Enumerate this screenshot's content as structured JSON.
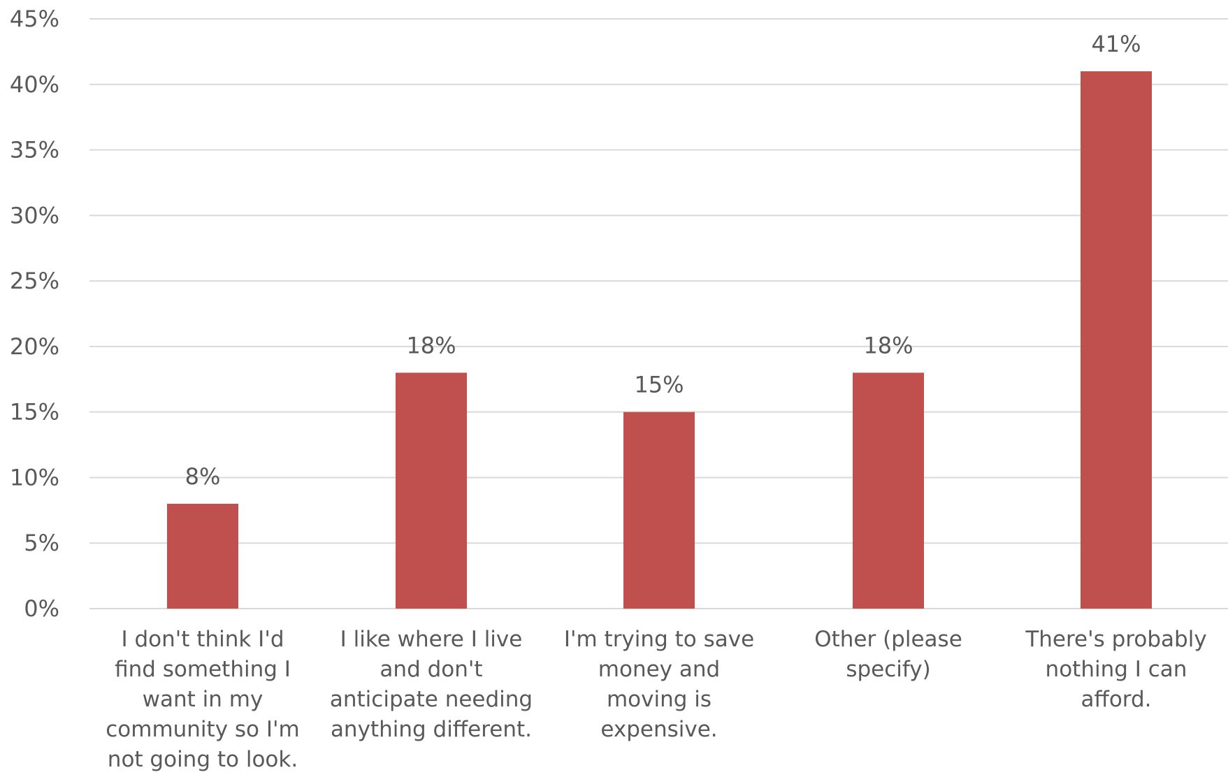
{
  "chart_data": {
    "type": "bar",
    "title": "",
    "xlabel": "",
    "ylabel": "",
    "ylim": [
      0,
      45
    ],
    "yticks": [
      0,
      5,
      10,
      15,
      20,
      25,
      30,
      35,
      40,
      45
    ],
    "ytick_labels": [
      "0%",
      "5%",
      "10%",
      "15%",
      "20%",
      "25%",
      "30%",
      "35%",
      "40%",
      "45%"
    ],
    "grid": true,
    "legend": "none",
    "bar_color": "#C0504D",
    "categories": [
      [
        "I don't think I'd",
        "find something I",
        "want in my",
        "community so I'm",
        "not going to look."
      ],
      [
        "I like where I live",
        "and don't",
        "anticipate needing",
        "anything different."
      ],
      [
        "I'm trying to save",
        "money and",
        "moving is",
        "expensive."
      ],
      [
        "Other (please",
        "specify)"
      ],
      [
        "There's probably",
        "nothing I can",
        "afford."
      ]
    ],
    "values": [
      8,
      18,
      15,
      18,
      41
    ],
    "data_labels": [
      "8%",
      "18%",
      "15%",
      "18%",
      "41%"
    ]
  }
}
